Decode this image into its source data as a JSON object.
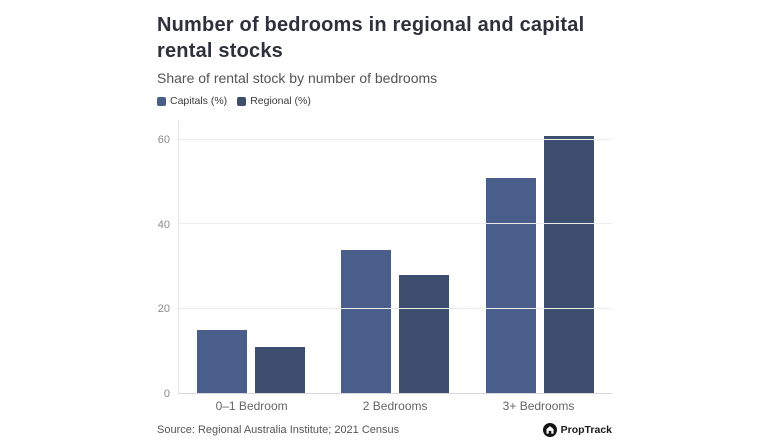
{
  "header": {
    "title": "Number of bedrooms in regional and capital rental stocks",
    "subtitle": "Share of rental stock by number of bedrooms"
  },
  "chart_data": {
    "type": "bar",
    "categories": [
      "0–1 Bedroom",
      "2 Bedrooms",
      "3+ Bedrooms"
    ],
    "series": [
      {
        "name": "Capitals (%)",
        "color": "#4a5e8c",
        "values": [
          15,
          34,
          51
        ]
      },
      {
        "name": "Regional (%)",
        "color": "#3e4e6e",
        "values": [
          11,
          28,
          61
        ]
      }
    ],
    "title": "Number of bedrooms in regional and capital rental stocks",
    "subtitle": "Share of rental stock by number of bedrooms",
    "xlabel": "",
    "ylabel": "",
    "y_ticks": [
      0,
      20,
      40,
      60
    ],
    "ylim": [
      0,
      64.5
    ],
    "grid": "horizontal",
    "legend_position": "top-left"
  },
  "footer": {
    "source": "Source: Regional Australia Institute; 2021 Census",
    "brand": "PropTrack"
  },
  "colors": {
    "capitals": "#4a5e8c",
    "regional": "#3e4e6e",
    "title_text": "#2e313b",
    "axis_text": "#8a8a8a",
    "gridline": "#ececec"
  }
}
